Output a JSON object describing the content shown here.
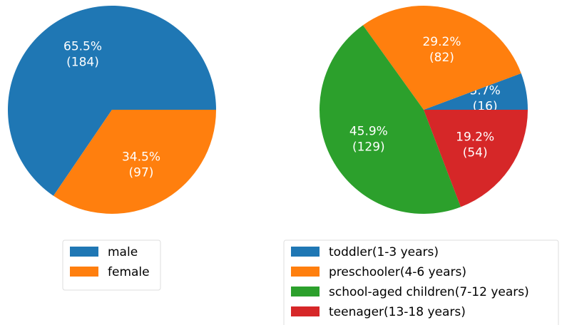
{
  "chart_data": [
    {
      "type": "pie",
      "categories": [
        "male",
        "female"
      ],
      "values": [
        65.5,
        34.5
      ],
      "value_labels": [
        "65.5%",
        "34.5%"
      ],
      "count_labels": [
        "(184)",
        "(97)"
      ],
      "colors": [
        "#1f77b4",
        "#ff7f0e"
      ]
    },
    {
      "type": "pie",
      "categories": [
        "toddler(1-3 years)",
        "preschooler(4-6 years)",
        "school-aged children(7-12 years)",
        "teenager(13-18 years)"
      ],
      "values": [
        5.7,
        29.2,
        45.9,
        19.2
      ],
      "value_labels": [
        "5.7%",
        "29.2%",
        "45.9%",
        "19.2%"
      ],
      "count_labels": [
        "(16)",
        "(82)",
        "(129)",
        "(54)"
      ],
      "colors": [
        "#1f77b4",
        "#ff7f0e",
        "#2ca02c",
        "#d62728"
      ]
    }
  ]
}
